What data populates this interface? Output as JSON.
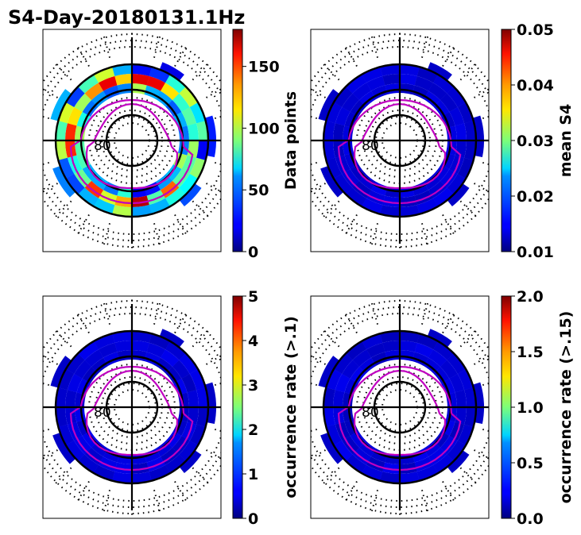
{
  "title": "S4-Day-20180131.1Hz",
  "colors": {
    "contour": "#c000c0",
    "axis": "#000000"
  },
  "chart_data": [
    {
      "type": "heatmap",
      "projection": "polar",
      "center_label": "80",
      "colorbar": {
        "label": "Data points",
        "ticks": [
          "0",
          "50",
          "100",
          "150"
        ],
        "range": [
          0,
          180
        ]
      }
    },
    {
      "type": "heatmap",
      "projection": "polar",
      "center_label": "80",
      "colorbar": {
        "label": "mean S4",
        "ticks": [
          "0.01",
          "0.02",
          "0.03",
          "0.04",
          "0.05"
        ],
        "range": [
          0.01,
          0.05
        ]
      }
    },
    {
      "type": "heatmap",
      "projection": "polar",
      "center_label": "80",
      "colorbar": {
        "label": "occurrence rate (>.1)",
        "ticks": [
          "0",
          "1",
          "2",
          "3",
          "4",
          "5"
        ],
        "range": [
          0,
          5
        ]
      }
    },
    {
      "type": "heatmap",
      "projection": "polar",
      "center_label": "80",
      "colorbar": {
        "label": "occurrence rate (>.15)",
        "ticks": [
          "0.0",
          "0.5",
          "1.0",
          "1.5",
          "2.0"
        ],
        "range": [
          0,
          2
        ]
      }
    }
  ]
}
